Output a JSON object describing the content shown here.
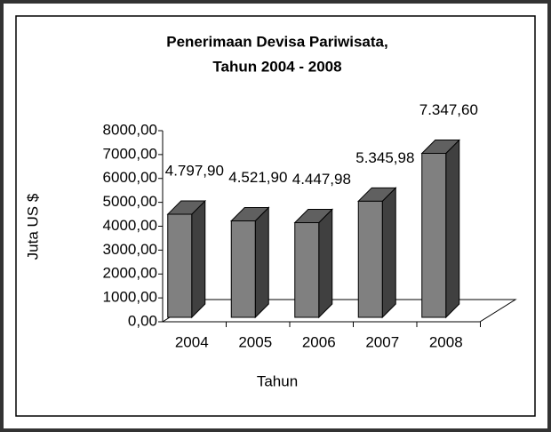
{
  "chart_data": {
    "type": "bar3d",
    "title": [
      "Penerimaan Devisa Pariwisata,",
      "Tahun 2004 - 2008"
    ],
    "xlabel": "Tahun",
    "ylabel": "Juta US $",
    "categories": [
      "2004",
      "2005",
      "2006",
      "2007",
      "2008"
    ],
    "values": [
      4797.9,
      4521.9,
      4447.98,
      5345.98,
      7347.6
    ],
    "value_labels": [
      "4.797,90",
      "4.521,90",
      "4.447,98",
      "5.345,98",
      "7.347,60"
    ],
    "color": "#808080",
    "ylim": [
      0,
      8000
    ],
    "yticks": [
      {
        "value": 0,
        "label": "0,00"
      },
      {
        "value": 1000,
        "label": "1000,00"
      },
      {
        "value": 2000,
        "label": "2000,00"
      },
      {
        "value": 3000,
        "label": "3000,00"
      },
      {
        "value": 4000,
        "label": "4000,00"
      },
      {
        "value": 5000,
        "label": "5000,00"
      },
      {
        "value": 6000,
        "label": "6000,00"
      },
      {
        "value": 7000,
        "label": "7000,00"
      },
      {
        "value": 8000,
        "label": "8000,00"
      }
    ]
  }
}
